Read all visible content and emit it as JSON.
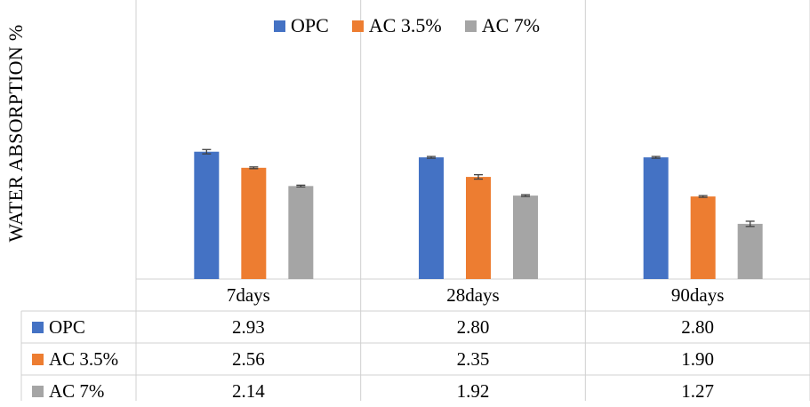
{
  "chart_data": {
    "type": "bar",
    "ylabel": "WATER ABSORPTION  %",
    "categories": [
      "7days",
      "28days",
      "90days"
    ],
    "series": [
      {
        "name": "OPC",
        "color": "#4472C4",
        "values": [
          2.93,
          2.8,
          2.8
        ],
        "errors": [
          0.05,
          0.02,
          0.02
        ]
      },
      {
        "name": "AC 3.5%",
        "color": "#ED7D31",
        "values": [
          2.56,
          2.35,
          1.9
        ],
        "errors": [
          0.02,
          0.05,
          0.02
        ]
      },
      {
        "name": "AC 7%",
        "color": "#A5A5A5",
        "values": [
          2.14,
          1.92,
          1.27
        ],
        "errors": [
          0.02,
          0.02,
          0.06
        ]
      }
    ],
    "ylim": [
      0,
      6
    ],
    "grid": false,
    "legend": "top-center",
    "data_table": true
  }
}
